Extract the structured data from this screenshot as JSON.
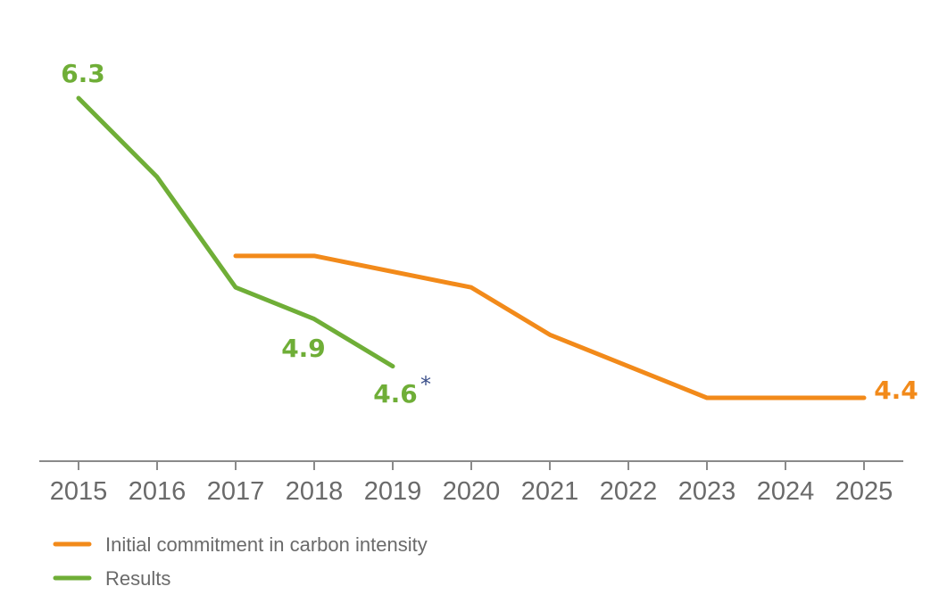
{
  "chart_data": {
    "type": "line",
    "x": [
      "2015",
      "2016",
      "2017",
      "2018",
      "2019",
      "2020",
      "2021",
      "2022",
      "2023",
      "2024",
      "2025"
    ],
    "ylim": [
      4.0,
      6.5
    ],
    "grid": false,
    "legend_placement": "bottom-left",
    "series": [
      {
        "name": "Initial commitment in carbon intensity",
        "color": "#f28a1a",
        "points": [
          {
            "x": "2017",
            "y": 5.3
          },
          {
            "x": "2018",
            "y": 5.3
          },
          {
            "x": "2020",
            "y": 5.1
          },
          {
            "x": "2021",
            "y": 4.8
          },
          {
            "x": "2023",
            "y": 4.4
          },
          {
            "x": "2024",
            "y": 4.4
          },
          {
            "x": "2025",
            "y": 4.4
          }
        ]
      },
      {
        "name": "Results",
        "color": "#6fae37",
        "points": [
          {
            "x": "2015",
            "y": 6.3
          },
          {
            "x": "2016",
            "y": 5.8
          },
          {
            "x": "2017",
            "y": 5.1
          },
          {
            "x": "2018",
            "y": 4.9
          },
          {
            "x": "2019",
            "y": 4.6
          }
        ]
      }
    ],
    "data_labels": [
      {
        "series": 1,
        "x": "2015",
        "y": 6.3,
        "text": "6.3"
      },
      {
        "series": 1,
        "x": "2018",
        "y": 4.9,
        "text": "4.9"
      },
      {
        "series": 1,
        "x": "2019",
        "y": 4.6,
        "text": "4.6",
        "suffix": "*"
      },
      {
        "series": 0,
        "x": "2025",
        "y": 4.4,
        "text": "4.4"
      }
    ]
  }
}
